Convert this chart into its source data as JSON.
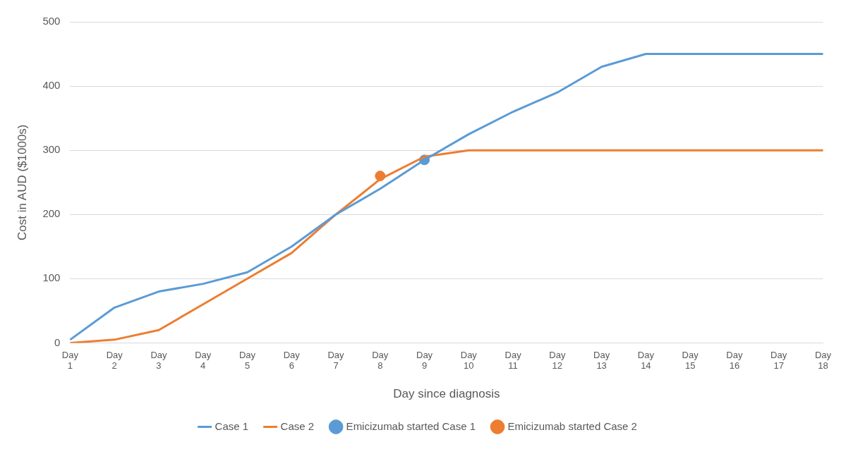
{
  "chart_data": {
    "type": "line",
    "xlabel": "Day since diagnosis",
    "ylabel": "Cost in AUD ($1000s)",
    "categories": [
      "Day 1",
      "Day 2",
      "Day 3",
      "Day 4",
      "Day 5",
      "Day 6",
      "Day 7",
      "Day 8",
      "Day 9",
      "Day 10",
      "Day 11",
      "Day 12",
      "Day 13",
      "Day 14",
      "Day 15",
      "Day 16",
      "Day 17",
      "Day 18"
    ],
    "series": [
      {
        "name": "Case 1",
        "color": "#5b9bd5",
        "values": [
          5,
          55,
          80,
          92,
          110,
          150,
          200,
          240,
          285,
          325,
          360,
          390,
          430,
          450,
          450,
          450,
          450,
          450
        ]
      },
      {
        "name": "Case 2",
        "color": "#ed7d31",
        "values": [
          0,
          5,
          20,
          60,
          100,
          140,
          200,
          255,
          290,
          300,
          300,
          300,
          300,
          300,
          300,
          300,
          300,
          300
        ]
      },
      {
        "name": "Emicizumab started Case 1",
        "type": "scatter",
        "color": "#5b9bd5",
        "x": [
          "Day 9"
        ],
        "values": [
          285
        ],
        "marker": "circle"
      },
      {
        "name": "Emicizumab started Case 2",
        "type": "scatter",
        "color": "#ed7d31",
        "x": [
          "Day 8"
        ],
        "values": [
          260
        ],
        "marker": "circle"
      }
    ],
    "ylim": [
      0,
      500
    ],
    "yticks": [
      0,
      100,
      200,
      300,
      400,
      500
    ],
    "grid": "y",
    "legend": "bottom",
    "marker": "none",
    "line_style": "solid"
  }
}
